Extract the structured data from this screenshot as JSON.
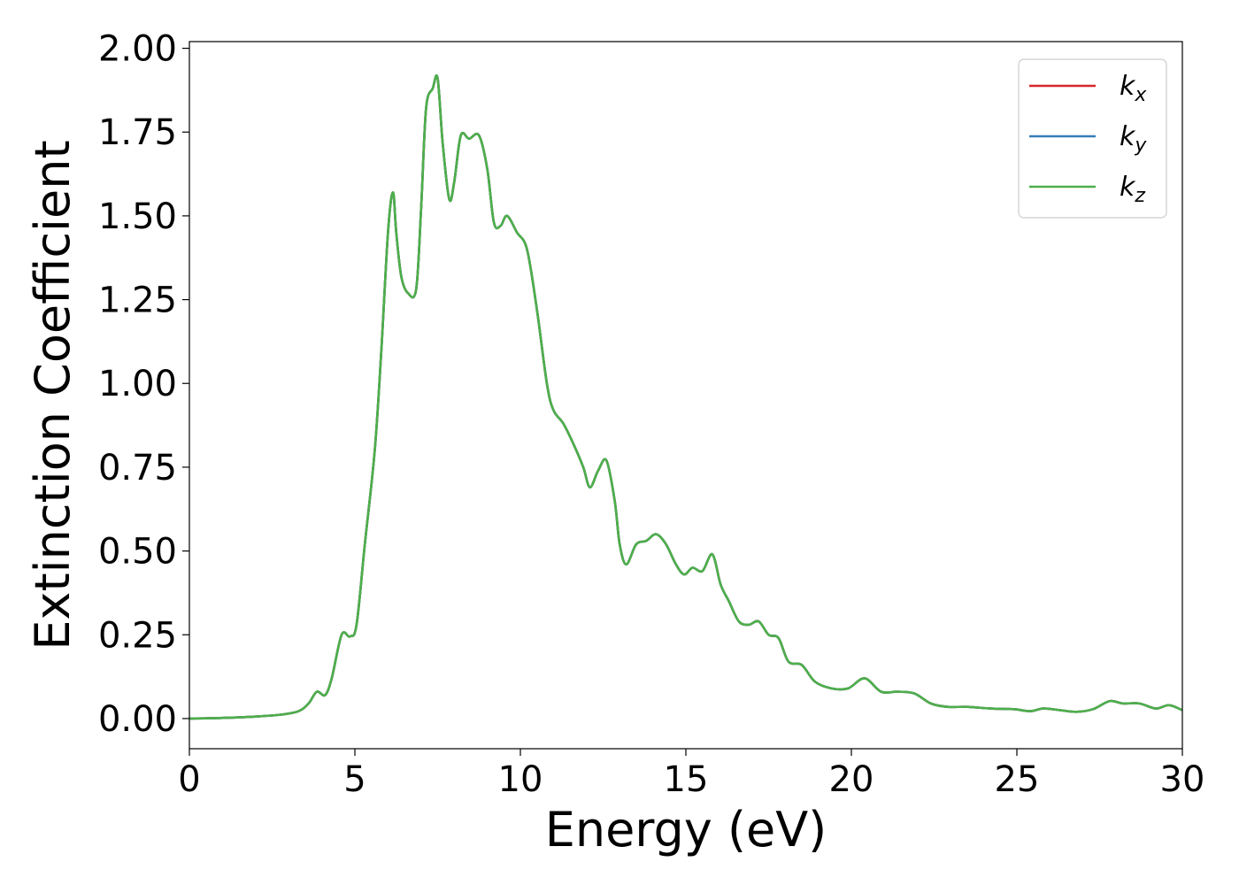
{
  "chart_data": {
    "type": "line",
    "xlabel": "Energy (eV)",
    "ylabel": "Extinction Coefficient",
    "xlim": [
      0,
      30
    ],
    "ylim": [
      -0.09,
      2.02
    ],
    "xticks": [
      0,
      5,
      10,
      15,
      20,
      25,
      30
    ],
    "xtick_labels": [
      "0",
      "5",
      "10",
      "15",
      "20",
      "25",
      "30"
    ],
    "yticks": [
      0,
      0.25,
      0.5,
      0.75,
      1.0,
      1.25,
      1.5,
      1.75,
      2.0
    ],
    "ytick_labels": [
      "0.00",
      "0.25",
      "0.50",
      "0.75",
      "1.00",
      "1.25",
      "1.50",
      "1.75",
      "2.00"
    ],
    "grid": false,
    "legend_position": "top-right",
    "x": [
      0,
      1,
      2,
      2.8,
      3.3,
      3.6,
      3.85,
      4.1,
      4.3,
      4.6,
      4.85,
      5.05,
      5.3,
      5.6,
      5.8,
      6.0,
      6.15,
      6.25,
      6.4,
      6.6,
      6.85,
      7.0,
      7.15,
      7.35,
      7.5,
      7.65,
      7.85,
      8.0,
      8.2,
      8.45,
      8.75,
      9.0,
      9.2,
      9.4,
      9.6,
      9.9,
      10.2,
      10.5,
      10.8,
      11.0,
      11.3,
      11.6,
      11.9,
      12.1,
      12.35,
      12.6,
      12.85,
      13.0,
      13.2,
      13.5,
      13.8,
      14.1,
      14.4,
      14.7,
      14.95,
      15.2,
      15.5,
      15.8,
      16.05,
      16.3,
      16.6,
      16.9,
      17.2,
      17.5,
      17.8,
      18.1,
      18.5,
      18.9,
      19.4,
      19.9,
      20.4,
      20.9,
      21.4,
      21.9,
      22.4,
      22.9,
      23.5,
      24.2,
      24.9,
      25.4,
      25.8,
      26.3,
      26.8,
      27.3,
      27.8,
      28.2,
      28.7,
      29.2,
      29.6,
      30.0
    ],
    "series": [
      {
        "name": "k_x",
        "color": "#d62728",
        "values": [
          0.0,
          0.002,
          0.006,
          0.012,
          0.022,
          0.045,
          0.08,
          0.07,
          0.12,
          0.25,
          0.245,
          0.28,
          0.52,
          0.8,
          1.1,
          1.45,
          1.57,
          1.45,
          1.32,
          1.27,
          1.28,
          1.52,
          1.82,
          1.88,
          1.91,
          1.72,
          1.55,
          1.6,
          1.74,
          1.73,
          1.74,
          1.64,
          1.48,
          1.47,
          1.5,
          1.45,
          1.4,
          1.22,
          1.0,
          0.92,
          0.88,
          0.82,
          0.75,
          0.69,
          0.74,
          0.77,
          0.65,
          0.52,
          0.46,
          0.52,
          0.53,
          0.55,
          0.52,
          0.46,
          0.43,
          0.45,
          0.44,
          0.49,
          0.4,
          0.35,
          0.29,
          0.28,
          0.29,
          0.25,
          0.24,
          0.17,
          0.16,
          0.11,
          0.09,
          0.09,
          0.12,
          0.08,
          0.08,
          0.075,
          0.045,
          0.035,
          0.035,
          0.03,
          0.028,
          0.022,
          0.03,
          0.025,
          0.02,
          0.028,
          0.052,
          0.045,
          0.045,
          0.03,
          0.04,
          0.025
        ]
      },
      {
        "name": "k_y",
        "color": "#377eb8",
        "values": [
          0.0,
          0.002,
          0.006,
          0.012,
          0.022,
          0.045,
          0.08,
          0.07,
          0.12,
          0.25,
          0.245,
          0.28,
          0.52,
          0.8,
          1.1,
          1.45,
          1.57,
          1.45,
          1.32,
          1.27,
          1.28,
          1.52,
          1.82,
          1.88,
          1.91,
          1.72,
          1.55,
          1.6,
          1.74,
          1.73,
          1.74,
          1.64,
          1.48,
          1.47,
          1.5,
          1.45,
          1.4,
          1.22,
          1.0,
          0.92,
          0.88,
          0.82,
          0.75,
          0.69,
          0.74,
          0.77,
          0.65,
          0.52,
          0.46,
          0.52,
          0.53,
          0.55,
          0.52,
          0.46,
          0.43,
          0.45,
          0.44,
          0.49,
          0.4,
          0.35,
          0.29,
          0.28,
          0.29,
          0.25,
          0.24,
          0.17,
          0.16,
          0.11,
          0.09,
          0.09,
          0.12,
          0.08,
          0.08,
          0.075,
          0.045,
          0.035,
          0.035,
          0.03,
          0.028,
          0.022,
          0.03,
          0.025,
          0.02,
          0.028,
          0.052,
          0.045,
          0.045,
          0.03,
          0.04,
          0.025
        ]
      },
      {
        "name": "k_z",
        "color": "#4daf4a",
        "values": [
          0.0,
          0.002,
          0.006,
          0.012,
          0.022,
          0.045,
          0.08,
          0.07,
          0.12,
          0.25,
          0.245,
          0.28,
          0.52,
          0.8,
          1.1,
          1.45,
          1.57,
          1.45,
          1.32,
          1.27,
          1.28,
          1.52,
          1.82,
          1.88,
          1.91,
          1.72,
          1.55,
          1.6,
          1.74,
          1.73,
          1.74,
          1.64,
          1.48,
          1.47,
          1.5,
          1.45,
          1.4,
          1.22,
          1.0,
          0.92,
          0.88,
          0.82,
          0.75,
          0.69,
          0.74,
          0.77,
          0.65,
          0.52,
          0.46,
          0.52,
          0.53,
          0.55,
          0.52,
          0.46,
          0.43,
          0.45,
          0.44,
          0.49,
          0.4,
          0.35,
          0.29,
          0.28,
          0.29,
          0.25,
          0.24,
          0.17,
          0.16,
          0.11,
          0.09,
          0.09,
          0.12,
          0.08,
          0.08,
          0.075,
          0.045,
          0.035,
          0.035,
          0.03,
          0.028,
          0.022,
          0.03,
          0.025,
          0.02,
          0.028,
          0.052,
          0.045,
          0.045,
          0.03,
          0.04,
          0.025
        ]
      }
    ],
    "legend": [
      {
        "base": "k",
        "sub": "x",
        "color": "#d62728"
      },
      {
        "base": "k",
        "sub": "y",
        "color": "#377eb8"
      },
      {
        "base": "k",
        "sub": "z",
        "color": "#4daf4a"
      }
    ]
  }
}
